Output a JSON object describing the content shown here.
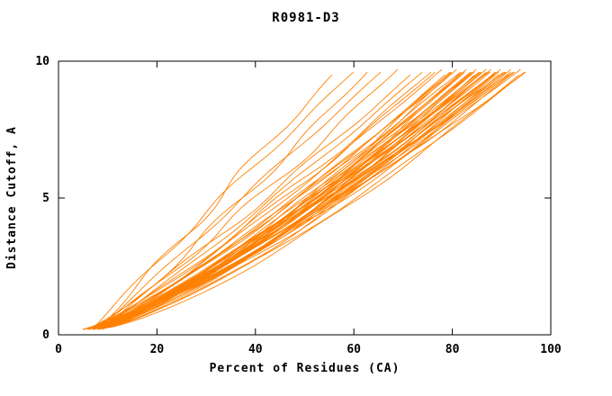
{
  "chart_data": {
    "type": "line",
    "title": "R0981-D3",
    "xlabel": "Percent of Residues (CA)",
    "ylabel": "Distance Cutoff, A",
    "xlim": [
      0,
      100
    ],
    "ylim": [
      0,
      10
    ],
    "xticks": [
      0,
      20,
      40,
      60,
      80,
      100
    ],
    "yticks": [
      0,
      5,
      10
    ],
    "grid": false,
    "legend": "none",
    "line_color": "#ff8000",
    "axis_color": "#000000",
    "y_start": 0.2,
    "y_end": 9.7,
    "curve_param_format": [
      "x_at_bottom",
      "x_at_top",
      "shape_exponent",
      "wobble_amplitude",
      "wobble_phase"
    ],
    "curves": [
      [
        8,
        56,
        1.0,
        1.2,
        0.5
      ],
      [
        7,
        60,
        1.05,
        0.8,
        2.0
      ],
      [
        9,
        63,
        0.95,
        1.0,
        4.0
      ],
      [
        8,
        66,
        1.0,
        0.6,
        1.0
      ],
      [
        7,
        69,
        0.9,
        1.1,
        3.0
      ],
      [
        6,
        72,
        0.9,
        0.8,
        0.3
      ],
      [
        8,
        74,
        0.92,
        0.5,
        1.5
      ],
      [
        7,
        76,
        0.88,
        0.9,
        2.5
      ],
      [
        6,
        77,
        0.85,
        0.7,
        3.5
      ],
      [
        9,
        78,
        0.9,
        0.4,
        5.0
      ],
      [
        5,
        79,
        0.8,
        0.5,
        0.7
      ],
      [
        6,
        80,
        0.75,
        0.6,
        1.2
      ],
      [
        7,
        80,
        0.85,
        0.4,
        2.2
      ],
      [
        8,
        80,
        0.78,
        0.8,
        3.1
      ],
      [
        5,
        81,
        0.82,
        0.5,
        4.2
      ],
      [
        6,
        82,
        0.76,
        0.7,
        5.1
      ],
      [
        7,
        82,
        0.8,
        0.3,
        0.4
      ],
      [
        8,
        82,
        0.88,
        0.6,
        1.8
      ],
      [
        5,
        83,
        0.74,
        0.9,
        2.9
      ],
      [
        6,
        83,
        0.8,
        0.5,
        3.8
      ],
      [
        7,
        84,
        0.77,
        0.4,
        4.7
      ],
      [
        8,
        84,
        0.83,
        0.7,
        5.6
      ],
      [
        6,
        84,
        0.79,
        0.5,
        0.9
      ],
      [
        5,
        85,
        0.75,
        0.6,
        1.9
      ],
      [
        7,
        85,
        0.81,
        0.8,
        2.8
      ],
      [
        8,
        85,
        0.73,
        0.4,
        3.9
      ],
      [
        6,
        86,
        0.78,
        0.6,
        4.8
      ],
      [
        7,
        86,
        0.84,
        0.5,
        5.7
      ],
      [
        5,
        86,
        0.76,
        0.7,
        0.2
      ],
      [
        8,
        87,
        0.8,
        0.4,
        1.1
      ],
      [
        6,
        87,
        0.74,
        0.8,
        2.1
      ],
      [
        7,
        87,
        0.82,
        0.5,
        3.2
      ],
      [
        5,
        88,
        0.77,
        0.6,
        4.1
      ],
      [
        6,
        88,
        0.85,
        0.4,
        5.2
      ],
      [
        8,
        88,
        0.79,
        0.7,
        0.6
      ],
      [
        7,
        89,
        0.75,
        0.5,
        1.6
      ],
      [
        6,
        89,
        0.81,
        0.6,
        2.6
      ],
      [
        5,
        89,
        0.73,
        0.8,
        3.6
      ],
      [
        8,
        90,
        0.78,
        0.5,
        4.6
      ],
      [
        6,
        90,
        0.84,
        0.4,
        5.5
      ],
      [
        7,
        90,
        0.76,
        0.7,
        0.8
      ],
      [
        5,
        91,
        0.8,
        0.5,
        1.4
      ],
      [
        8,
        91,
        0.74,
        0.6,
        2.4
      ],
      [
        6,
        91,
        0.82,
        0.8,
        3.4
      ],
      [
        7,
        92,
        0.77,
        0.4,
        4.4
      ],
      [
        5,
        92,
        0.79,
        0.6,
        5.4
      ],
      [
        8,
        92,
        0.85,
        0.5,
        0.3
      ],
      [
        6,
        93,
        0.75,
        0.7,
        1.3
      ],
      [
        7,
        93,
        0.81,
        0.4,
        2.3
      ],
      [
        5,
        94,
        0.78,
        0.6,
        3.3
      ],
      [
        8,
        94,
        0.72,
        0.5,
        4.3
      ],
      [
        6,
        95,
        0.8,
        0.7,
        5.3
      ],
      [
        7,
        95,
        0.74,
        0.4,
        0.5
      ]
    ]
  }
}
